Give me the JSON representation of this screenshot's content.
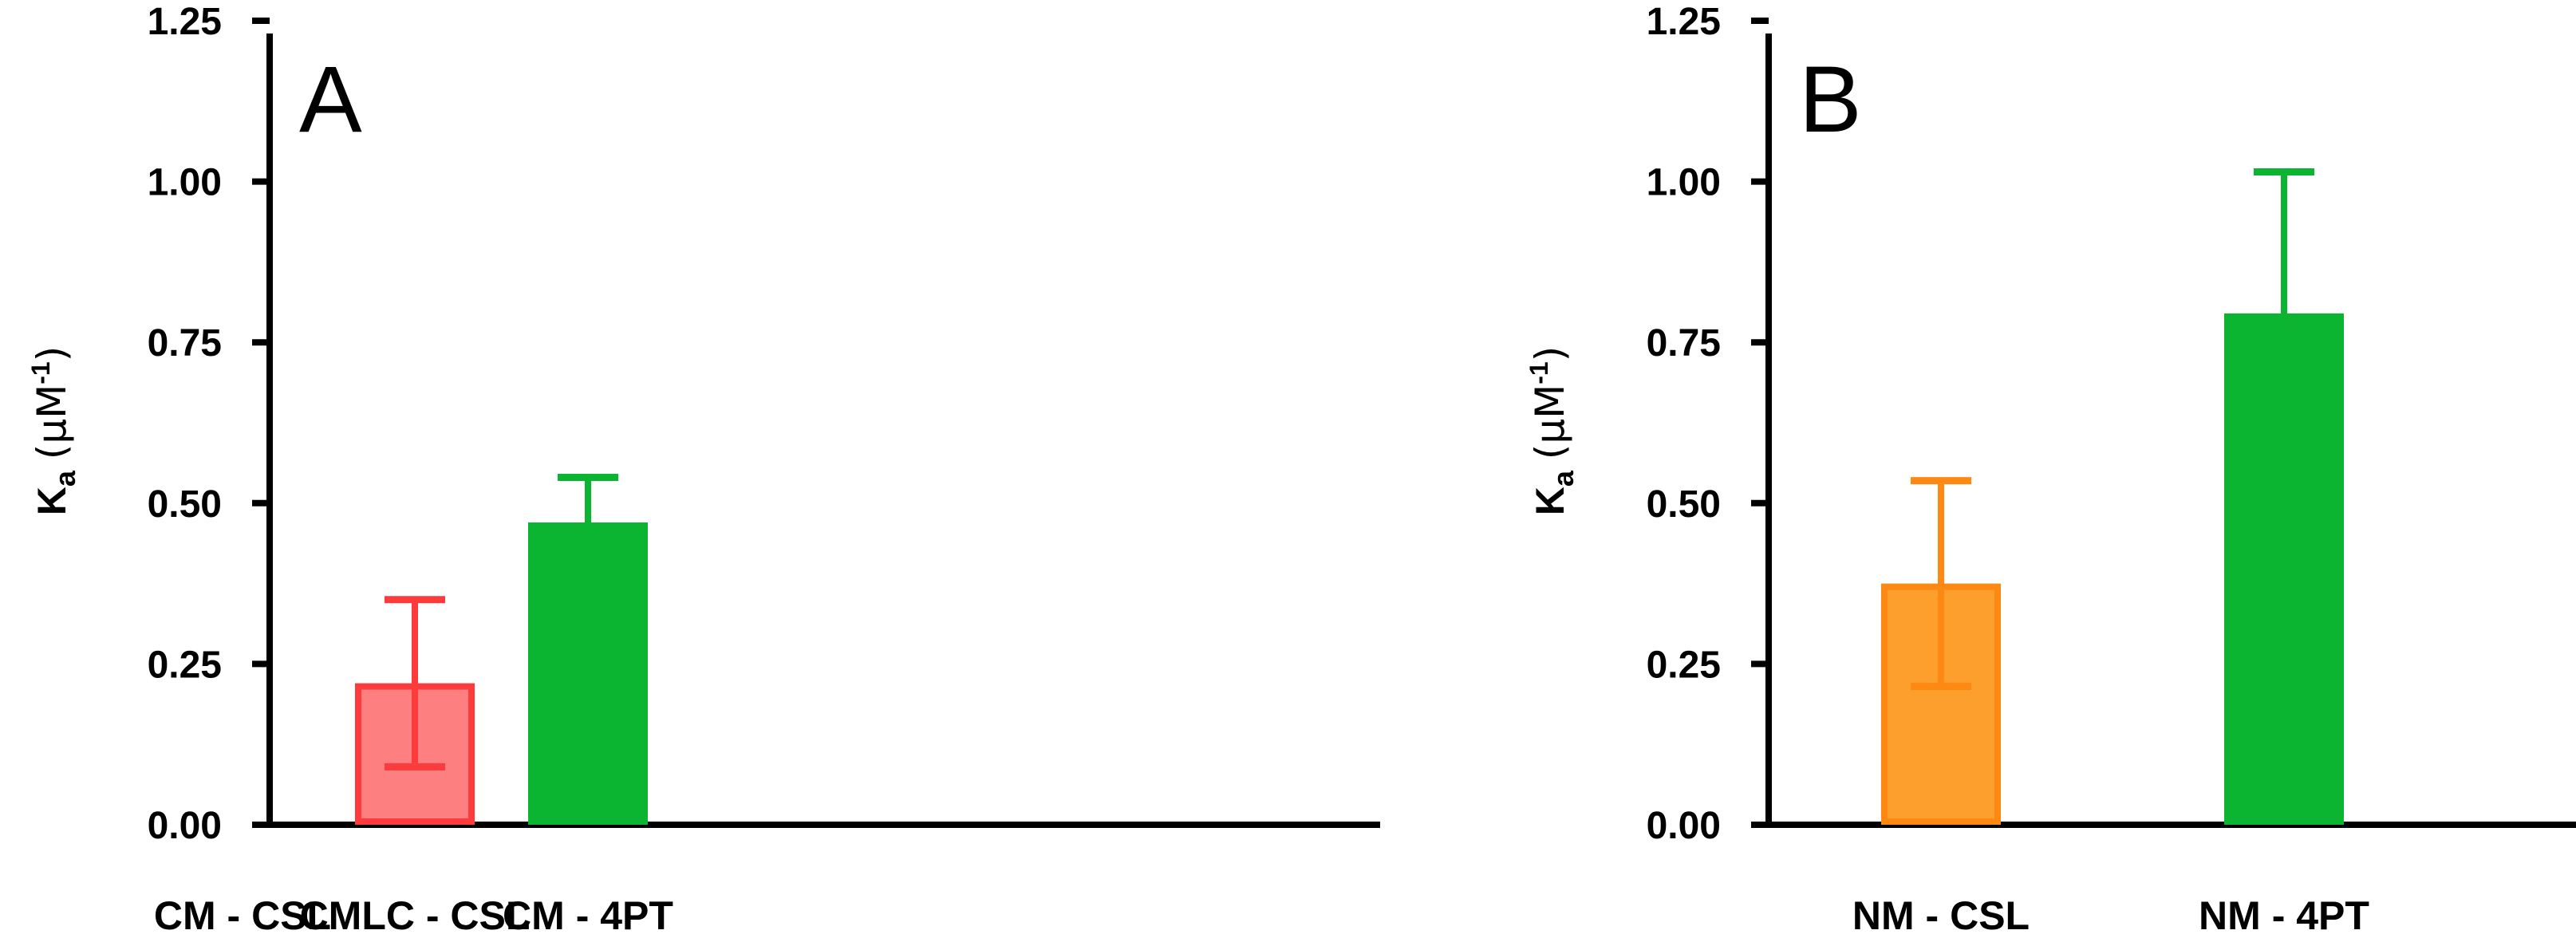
{
  "chart_data": [
    {
      "type": "bar",
      "panel_label": "A",
      "ylabel": {
        "base": "K",
        "sub": "a",
        "open": "(",
        "unit": "µM",
        "sup": "-1",
        "close": ")"
      },
      "ylim": [
        0,
        1.25
      ],
      "yticks": [
        "0.00",
        "0.25",
        "0.50",
        "0.75",
        "1.00",
        "1.25"
      ],
      "categories": [
        "CM - CSL",
        "CMLC - CSL",
        "CM - 4PT"
      ],
      "values": [
        0,
        0.22,
        0.47
      ],
      "errors": [
        0,
        0.13,
        0.07
      ],
      "colors": [
        "#ffffff",
        "#fd3a3c",
        "#0bb431"
      ],
      "fills": [
        "#ffffff",
        "#fd7f80",
        "#0bb431"
      ]
    },
    {
      "type": "bar",
      "panel_label": "B",
      "ylabel": {
        "base": "K",
        "sub": "a",
        "open": "(",
        "unit": "µM",
        "sup": "-1",
        "close": ")"
      },
      "ylim": [
        0,
        1.25
      ],
      "yticks": [
        "0.00",
        "0.25",
        "0.50",
        "0.75",
        "1.00",
        "1.25"
      ],
      "categories": [
        "NM - CSL",
        "NM - 4PT"
      ],
      "values": [
        0.375,
        0.795
      ],
      "errors": [
        0.16,
        0.22
      ],
      "colors": [
        "#fd8812",
        "#0bb431"
      ],
      "fills": [
        "#fd9f2c",
        "#0bb431"
      ]
    }
  ]
}
